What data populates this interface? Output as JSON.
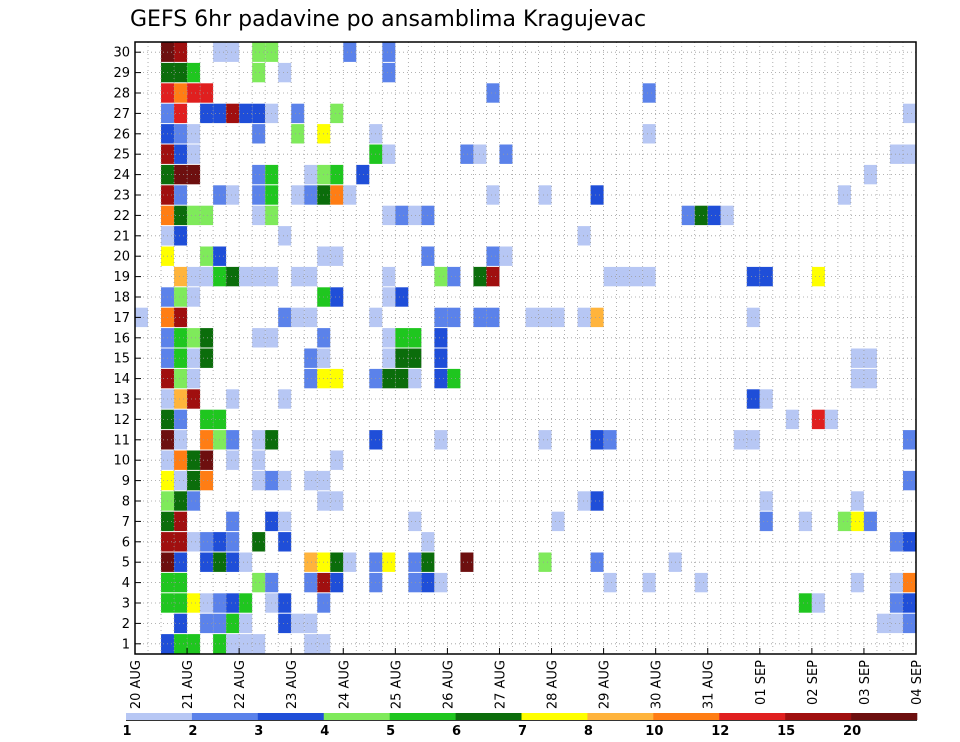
{
  "chart_data": {
    "type": "heatmap",
    "title": "GEFS 6hr padavine po ansamblima Kragujevac",
    "x_tick_labels": [
      "20 AUG",
      "21 AUG",
      "22 AUG",
      "23 AUG",
      "24 AUG",
      "25 AUG",
      "26 AUG",
      "27 AUG",
      "28 AUG",
      "29 AUG",
      "30 AUG",
      "31 AUG",
      "01 SEP",
      "02 SEP",
      "03 SEP",
      "04 SEP"
    ],
    "x_range_steps": [
      0,
      60
    ],
    "y_tick_labels": [
      "1",
      "2",
      "3",
      "4",
      "5",
      "6",
      "7",
      "8",
      "9",
      "10",
      "11",
      "12",
      "13",
      "14",
      "15",
      "16",
      "17",
      "18",
      "19",
      "20",
      "21",
      "22",
      "23",
      "24",
      "25",
      "26",
      "27",
      "28",
      "29",
      "30"
    ],
    "y_range": [
      1,
      30
    ],
    "grid": true,
    "colorbar": {
      "labels": [
        "1",
        "2",
        "3",
        "4",
        "5",
        "6",
        "7",
        "8",
        "10",
        "12",
        "15",
        "20"
      ],
      "colors": [
        "#b7c7f4",
        "#5b82ea",
        "#1f4ed8",
        "#7fea5b",
        "#1fc61f",
        "#0b6d0b",
        "#ffff00",
        "#ffb43c",
        "#ff7d14",
        "#e01f1f",
        "#a00f0f",
        "#6d0f0f"
      ]
    },
    "members": {
      "30": [
        [
          3,
          12
        ],
        [
          4,
          11
        ],
        [
          7,
          1
        ],
        [
          8,
          1
        ],
        [
          10,
          4
        ],
        [
          11,
          4
        ],
        [
          17,
          2
        ],
        [
          20,
          2
        ]
      ],
      "29": [
        [
          3,
          6
        ],
        [
          4,
          6
        ],
        [
          5,
          5
        ],
        [
          10,
          4
        ],
        [
          12,
          1
        ],
        [
          20,
          2
        ]
      ],
      "28": [
        [
          3,
          10
        ],
        [
          4,
          9
        ],
        [
          5,
          10
        ],
        [
          6,
          10
        ],
        [
          28,
          2
        ],
        [
          40,
          2
        ]
      ],
      "27": [
        [
          3,
          2
        ],
        [
          4,
          10
        ],
        [
          6,
          3
        ],
        [
          7,
          3
        ],
        [
          8,
          11
        ],
        [
          9,
          3
        ],
        [
          10,
          3
        ],
        [
          11,
          1
        ],
        [
          13,
          2
        ],
        [
          16,
          4
        ],
        [
          60,
          1
        ]
      ],
      "26": [
        [
          3,
          3
        ],
        [
          4,
          2
        ],
        [
          5,
          1
        ],
        [
          10,
          2
        ],
        [
          13,
          4
        ],
        [
          15,
          7
        ],
        [
          19,
          1
        ],
        [
          40,
          1
        ]
      ],
      "25": [
        [
          3,
          11
        ],
        [
          4,
          3
        ],
        [
          5,
          1
        ],
        [
          19,
          5
        ],
        [
          20,
          1
        ],
        [
          26,
          2
        ],
        [
          27,
          1
        ],
        [
          29,
          2
        ],
        [
          59,
          1
        ],
        [
          60,
          1
        ]
      ],
      "24": [
        [
          3,
          6
        ],
        [
          4,
          12
        ],
        [
          5,
          12
        ],
        [
          10,
          2
        ],
        [
          11,
          5
        ],
        [
          14,
          1
        ],
        [
          15,
          4
        ],
        [
          16,
          5
        ],
        [
          18,
          3
        ],
        [
          57,
          1
        ]
      ],
      "23": [
        [
          3,
          11
        ],
        [
          4,
          2
        ],
        [
          7,
          2
        ],
        [
          8,
          1
        ],
        [
          10,
          2
        ],
        [
          11,
          5
        ],
        [
          13,
          1
        ],
        [
          14,
          2
        ],
        [
          15,
          6
        ],
        [
          16,
          9
        ],
        [
          17,
          1
        ],
        [
          28,
          1
        ],
        [
          32,
          1
        ],
        [
          36,
          3
        ],
        [
          55,
          1
        ]
      ],
      "22": [
        [
          3,
          9
        ],
        [
          4,
          6
        ],
        [
          5,
          4
        ],
        [
          6,
          4
        ],
        [
          10,
          1
        ],
        [
          11,
          4
        ],
        [
          20,
          1
        ],
        [
          21,
          2
        ],
        [
          22,
          1
        ],
        [
          23,
          2
        ],
        [
          43,
          2
        ],
        [
          44,
          6
        ],
        [
          45,
          3
        ],
        [
          46,
          1
        ]
      ],
      "21": [
        [
          3,
          1
        ],
        [
          4,
          3
        ],
        [
          12,
          1
        ],
        [
          35,
          1
        ]
      ],
      "20": [
        [
          3,
          7
        ],
        [
          6,
          4
        ],
        [
          7,
          3
        ],
        [
          15,
          1
        ],
        [
          16,
          1
        ],
        [
          23,
          2
        ],
        [
          28,
          2
        ],
        [
          29,
          1
        ]
      ],
      "19": [
        [
          4,
          8
        ],
        [
          5,
          1
        ],
        [
          6,
          1
        ],
        [
          7,
          5
        ],
        [
          8,
          6
        ],
        [
          9,
          1
        ],
        [
          10,
          1
        ],
        [
          11,
          1
        ],
        [
          13,
          1
        ],
        [
          14,
          1
        ],
        [
          20,
          1
        ],
        [
          24,
          4
        ],
        [
          25,
          2
        ],
        [
          27,
          6
        ],
        [
          28,
          11
        ],
        [
          37,
          1
        ],
        [
          38,
          1
        ],
        [
          39,
          1
        ],
        [
          40,
          1
        ],
        [
          48,
          3
        ],
        [
          49,
          3
        ],
        [
          53,
          7
        ]
      ],
      "18": [
        [
          3,
          2
        ],
        [
          4,
          4
        ],
        [
          5,
          1
        ],
        [
          15,
          5
        ],
        [
          16,
          3
        ],
        [
          20,
          1
        ],
        [
          21,
          3
        ]
      ],
      "17": [
        [
          1,
          1
        ],
        [
          3,
          9
        ],
        [
          4,
          11
        ],
        [
          12,
          2
        ],
        [
          13,
          1
        ],
        [
          14,
          1
        ],
        [
          19,
          1
        ],
        [
          24,
          2
        ],
        [
          25,
          2
        ],
        [
          27,
          2
        ],
        [
          28,
          2
        ],
        [
          31,
          1
        ],
        [
          32,
          1
        ],
        [
          33,
          1
        ],
        [
          35,
          1
        ],
        [
          36,
          8
        ],
        [
          48,
          1
        ]
      ],
      "16": [
        [
          3,
          2
        ],
        [
          4,
          5
        ],
        [
          5,
          4
        ],
        [
          6,
          6
        ],
        [
          10,
          1
        ],
        [
          11,
          1
        ],
        [
          15,
          2
        ],
        [
          20,
          1
        ],
        [
          21,
          5
        ],
        [
          22,
          5
        ],
        [
          24,
          3
        ]
      ],
      "15": [
        [
          3,
          2
        ],
        [
          4,
          5
        ],
        [
          5,
          1
        ],
        [
          6,
          6
        ],
        [
          14,
          2
        ],
        [
          15,
          1
        ],
        [
          20,
          1
        ],
        [
          21,
          6
        ],
        [
          22,
          6
        ],
        [
          24,
          3
        ],
        [
          56,
          1
        ],
        [
          57,
          1
        ]
      ],
      "14": [
        [
          3,
          11
        ],
        [
          4,
          4
        ],
        [
          5,
          1
        ],
        [
          14,
          2
        ],
        [
          15,
          7
        ],
        [
          16,
          7
        ],
        [
          19,
          2
        ],
        [
          20,
          6
        ],
        [
          21,
          6
        ],
        [
          22,
          1
        ],
        [
          24,
          3
        ],
        [
          25,
          5
        ],
        [
          56,
          1
        ],
        [
          57,
          1
        ]
      ],
      "13": [
        [
          3,
          1
        ],
        [
          4,
          8
        ],
        [
          5,
          11
        ],
        [
          8,
          1
        ],
        [
          12,
          1
        ],
        [
          48,
          3
        ],
        [
          49,
          1
        ]
      ],
      "12": [
        [
          3,
          6
        ],
        [
          4,
          2
        ],
        [
          6,
          5
        ],
        [
          7,
          5
        ],
        [
          51,
          1
        ],
        [
          53,
          10
        ],
        [
          54,
          1
        ]
      ],
      "11": [
        [
          3,
          12
        ],
        [
          4,
          1
        ],
        [
          6,
          9
        ],
        [
          7,
          4
        ],
        [
          8,
          2
        ],
        [
          10,
          1
        ],
        [
          11,
          6
        ],
        [
          19,
          3
        ],
        [
          24,
          1
        ],
        [
          32,
          1
        ],
        [
          36,
          3
        ],
        [
          37,
          2
        ],
        [
          47,
          1
        ],
        [
          48,
          1
        ],
        [
          60,
          2
        ]
      ],
      "10": [
        [
          3,
          1
        ],
        [
          4,
          9
        ],
        [
          5,
          6
        ],
        [
          6,
          12
        ],
        [
          8,
          1
        ],
        [
          10,
          1
        ],
        [
          16,
          1
        ]
      ],
      "9": [
        [
          3,
          7
        ],
        [
          4,
          1
        ],
        [
          5,
          6
        ],
        [
          6,
          9
        ],
        [
          10,
          1
        ],
        [
          11,
          2
        ],
        [
          12,
          1
        ],
        [
          14,
          1
        ],
        [
          15,
          1
        ],
        [
          60,
          2
        ]
      ],
      "8": [
        [
          3,
          4
        ],
        [
          4,
          6
        ],
        [
          5,
          2
        ],
        [
          15,
          1
        ],
        [
          16,
          1
        ],
        [
          35,
          1
        ],
        [
          36,
          3
        ],
        [
          49,
          1
        ],
        [
          56,
          1
        ]
      ],
      "7": [
        [
          3,
          6
        ],
        [
          4,
          11
        ],
        [
          8,
          2
        ],
        [
          11,
          3
        ],
        [
          12,
          1
        ],
        [
          22,
          1
        ],
        [
          33,
          1
        ],
        [
          49,
          2
        ],
        [
          52,
          1
        ],
        [
          55,
          4
        ],
        [
          56,
          7
        ],
        [
          57,
          2
        ]
      ],
      "6": [
        [
          3,
          11
        ],
        [
          4,
          11
        ],
        [
          5,
          1
        ],
        [
          6,
          2
        ],
        [
          7,
          3
        ],
        [
          8,
          2
        ],
        [
          10,
          6
        ],
        [
          12,
          3
        ],
        [
          23,
          1
        ],
        [
          59,
          2
        ],
        [
          60,
          3
        ]
      ],
      "5": [
        [
          3,
          12
        ],
        [
          4,
          3
        ],
        [
          6,
          3
        ],
        [
          7,
          6
        ],
        [
          8,
          3
        ],
        [
          9,
          1
        ],
        [
          14,
          8
        ],
        [
          15,
          7
        ],
        [
          16,
          6
        ],
        [
          17,
          1
        ],
        [
          19,
          2
        ],
        [
          20,
          7
        ],
        [
          22,
          2
        ],
        [
          23,
          6
        ],
        [
          26,
          12
        ],
        [
          32,
          4
        ],
        [
          36,
          2
        ],
        [
          42,
          1
        ]
      ],
      "4": [
        [
          3,
          5
        ],
        [
          4,
          5
        ],
        [
          10,
          4
        ],
        [
          11,
          2
        ],
        [
          14,
          2
        ],
        [
          15,
          11
        ],
        [
          16,
          3
        ],
        [
          19,
          2
        ],
        [
          22,
          2
        ],
        [
          23,
          3
        ],
        [
          24,
          1
        ],
        [
          37,
          1
        ],
        [
          40,
          1
        ],
        [
          44,
          1
        ],
        [
          56,
          1
        ],
        [
          59,
          1
        ],
        [
          60,
          9
        ]
      ],
      "3": [
        [
          3,
          5
        ],
        [
          4,
          5
        ],
        [
          5,
          7
        ],
        [
          6,
          1
        ],
        [
          7,
          2
        ],
        [
          8,
          3
        ],
        [
          9,
          5
        ],
        [
          11,
          1
        ],
        [
          12,
          3
        ],
        [
          15,
          2
        ],
        [
          52,
          5
        ],
        [
          53,
          1
        ],
        [
          59,
          2
        ],
        [
          60,
          3
        ]
      ],
      "2": [
        [
          4,
          3
        ],
        [
          6,
          2
        ],
        [
          7,
          2
        ],
        [
          8,
          5
        ],
        [
          9,
          1
        ],
        [
          12,
          3
        ],
        [
          13,
          1
        ],
        [
          14,
          1
        ],
        [
          58,
          1
        ],
        [
          59,
          1
        ],
        [
          60,
          2
        ]
      ],
      "1": [
        [
          3,
          3
        ],
        [
          4,
          5
        ],
        [
          5,
          5
        ],
        [
          7,
          5
        ],
        [
          8,
          1
        ],
        [
          9,
          1
        ],
        [
          10,
          1
        ],
        [
          14,
          1
        ],
        [
          15,
          1
        ]
      ]
    }
  }
}
